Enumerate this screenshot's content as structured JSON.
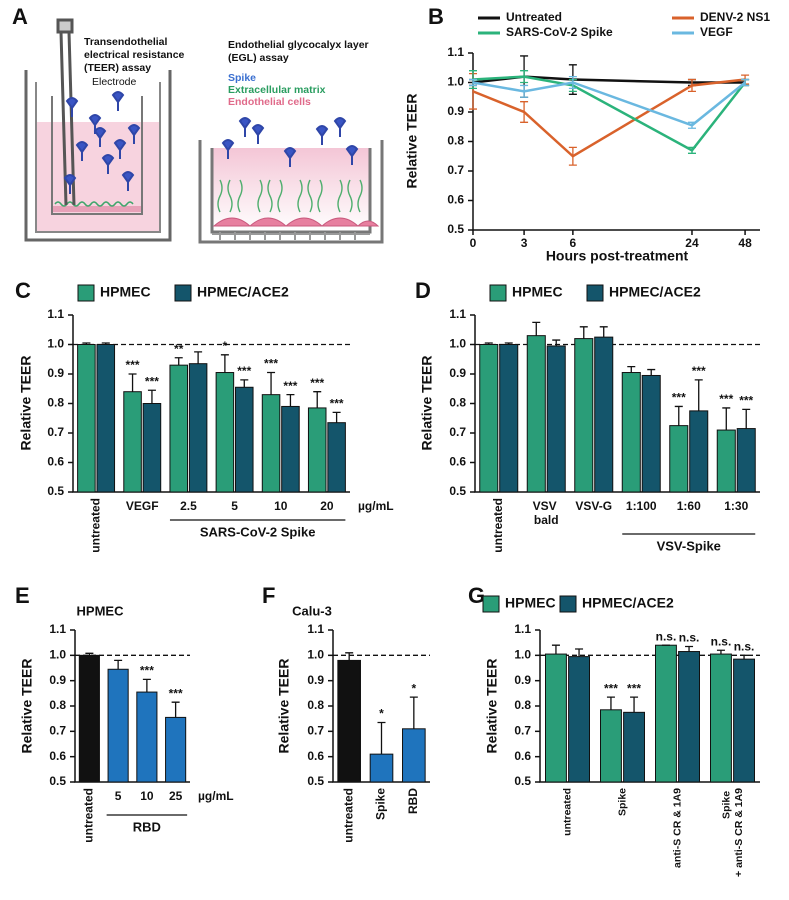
{
  "diagram": {
    "label": "A",
    "teer_title": "Transendothelial\nelectrical resistance\n(TEER) assay",
    "electrode": "Electrode",
    "egl_title": "Endothelial glycocalyx layer\n(EGL) assay",
    "legend": [
      "Spike",
      "Extracellular matrix",
      "Endothelial cells"
    ]
  },
  "chart_data": [
    {
      "type": "line",
      "label": "B",
      "categories": [
        "0",
        "3",
        "6",
        "24",
        "48"
      ],
      "xlabel": "Hours post-treatment",
      "ylabel": "Relative TEER",
      "ylim": [
        0.5,
        1.1
      ],
      "yticks": [
        0.5,
        0.6,
        0.7,
        0.8,
        0.9,
        {
          "value": 1,
          "label": "1.0"
        },
        1.1
      ],
      "series": [
        {
          "name": "Untreated",
          "color": "#111111",
          "values": [
            1.0,
            1.02,
            1.01,
            1.0,
            1.0
          ],
          "errors": [
            0.01,
            0.07,
            0.05,
            0.01,
            0.01
          ]
        },
        {
          "name": "DENV-2 NS1",
          "color": "#d9622b",
          "values": [
            0.97,
            0.9,
            0.75,
            0.99,
            1.01
          ],
          "errors": [
            0.06,
            0.035,
            0.03,
            0.02,
            0.015
          ]
        },
        {
          "name": "SARS-CoV-2 Spike",
          "color": "#2bb37b",
          "values": [
            1.01,
            1.02,
            0.99,
            0.77,
            1.0
          ],
          "errors": [
            0.03,
            0.02,
            0.02,
            0.01,
            0.01
          ]
        },
        {
          "name": "VEGF",
          "color": "#6ab8e0",
          "values": [
            1.0,
            0.97,
            1.0,
            0.855,
            1.0
          ],
          "errors": [
            0.01,
            0.02,
            0.02,
            0.01,
            0.01
          ]
        }
      ]
    },
    {
      "type": "bar",
      "label": "C",
      "categories": [
        "untreated",
        "VEGF",
        "2.5",
        "5",
        "10",
        "20"
      ],
      "group_label": "SARS-CoV-2 Spike",
      "unit": "µg/mL",
      "ylabel": "Relative TEER",
      "ylim": [
        0.5,
        1.1
      ],
      "yticks": [
        0.5,
        0.6,
        0.7,
        0.8,
        0.9,
        {
          "value": 1,
          "label": "1.0"
        },
        1.1
      ],
      "reference_line": 1,
      "series": [
        {
          "name": "HPMEC",
          "color": "#2a9d78",
          "values": [
            1.0,
            0.84,
            0.93,
            0.905,
            0.83,
            0.785
          ],
          "errors": [
            0.005,
            0.06,
            0.025,
            0.06,
            0.075,
            0.055
          ],
          "annotations": [
            null,
            "***",
            "**",
            "*",
            "***",
            "***"
          ]
        },
        {
          "name": "HPMEC/ACE2",
          "color": "#14556b",
          "values": [
            1.0,
            0.8,
            0.935,
            0.855,
            0.79,
            0.735
          ],
          "errors": [
            0.005,
            0.045,
            0.04,
            0.025,
            0.04,
            0.035
          ],
          "annotations": [
            null,
            "***",
            null,
            "***",
            "***",
            "***"
          ]
        }
      ]
    },
    {
      "type": "bar",
      "label": "D",
      "categories": [
        "untreated",
        "VSV\nbald",
        "VSV-G",
        "1:100",
        "1:60",
        "1:30"
      ],
      "group_label": "VSV-Spike",
      "ylabel": "Relative TEER",
      "ylim": [
        0.5,
        1.1
      ],
      "yticks": [
        0.5,
        0.6,
        0.7,
        0.8,
        0.9,
        {
          "value": 1,
          "label": "1.0"
        },
        1.1
      ],
      "reference_line": 1,
      "series": [
        {
          "name": "HPMEC",
          "color": "#2a9d78",
          "values": [
            1.0,
            1.03,
            1.02,
            0.905,
            0.725,
            0.71
          ],
          "errors": [
            0.005,
            0.045,
            0.04,
            0.02,
            0.065,
            0.075
          ],
          "annotations": [
            null,
            null,
            null,
            null,
            "***",
            "***"
          ]
        },
        {
          "name": "HPMEC/ACE2",
          "color": "#14556b",
          "values": [
            1.0,
            0.995,
            1.025,
            0.895,
            0.775,
            0.715
          ],
          "errors": [
            0.005,
            0.02,
            0.035,
            0.02,
            0.105,
            0.065
          ],
          "annotations": [
            null,
            null,
            null,
            null,
            "***",
            "***"
          ]
        }
      ]
    },
    {
      "type": "bar",
      "label": "E",
      "title": "HPMEC",
      "categories": [
        "untreated",
        "5",
        "10",
        "25"
      ],
      "group_label": "RBD",
      "unit": "µg/mL",
      "ylabel": "Relative TEER",
      "ylim": [
        0.5,
        1.1
      ],
      "yticks": [
        0.5,
        0.6,
        0.7,
        0.8,
        0.9,
        {
          "value": 1,
          "label": "1.0"
        },
        1.1
      ],
      "reference_line": 1,
      "values": [
        1.0,
        0.945,
        0.855,
        0.755
      ],
      "errors": [
        0.008,
        0.035,
        0.05,
        0.06
      ],
      "colors": [
        "#111111",
        "#1f74bd",
        "#1f74bd",
        "#1f74bd"
      ],
      "annotations": [
        null,
        null,
        "***",
        "***"
      ]
    },
    {
      "type": "bar",
      "label": "F",
      "title": "Calu-3",
      "categories": [
        "untreated",
        "Spike",
        "RBD"
      ],
      "ylabel": "Relative TEER",
      "ylim": [
        0.5,
        1.1
      ],
      "yticks": [
        0.5,
        0.6,
        0.7,
        0.8,
        0.9,
        {
          "value": 1,
          "label": "1.0"
        },
        1.1
      ],
      "reference_line": 1,
      "values": [
        0.98,
        0.61,
        0.71
      ],
      "errors": [
        0.03,
        0.125,
        0.125
      ],
      "colors": [
        "#111111",
        "#1f74bd",
        "#1f74bd"
      ],
      "annotations": [
        null,
        "*",
        "*"
      ]
    },
    {
      "type": "bar",
      "label": "G",
      "categories": [
        "untreated",
        "Spike",
        "anti-S CR & 1A9",
        "Spike\n+ anti-S CR & 1A9"
      ],
      "ylabel": "Relative TEER",
      "ylim": [
        0.5,
        1.1
      ],
      "yticks": [
        0.5,
        0.6,
        0.7,
        0.8,
        0.9,
        {
          "value": 1,
          "label": "1.0"
        },
        1.1
      ],
      "reference_line": 1,
      "series": [
        {
          "name": "HPMEC",
          "color": "#2a9d78",
          "values": [
            1.005,
            0.785,
            1.04,
            1.005
          ],
          "errors": [
            0.035,
            0.05,
            0,
            0.015
          ],
          "annotations": [
            null,
            "***",
            "n.s.",
            "n.s."
          ]
        },
        {
          "name": "HPMEC/ACE2",
          "color": "#14556b",
          "values": [
            0.995,
            0.775,
            1.015,
            0.985
          ],
          "errors": [
            0.03,
            0.06,
            0.02,
            0.015
          ],
          "annotations": [
            null,
            "***",
            "n.s.",
            "n.s."
          ]
        }
      ]
    }
  ]
}
